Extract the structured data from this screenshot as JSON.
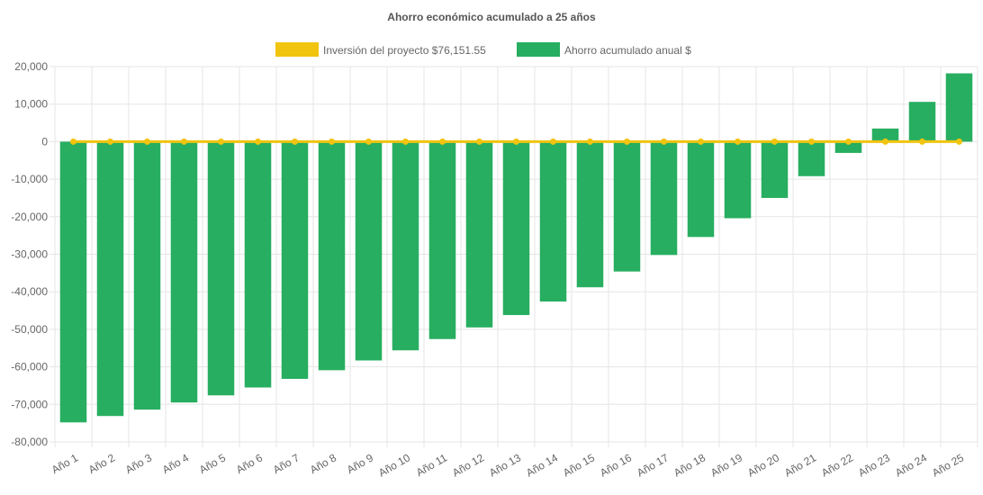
{
  "chart_data": {
    "type": "bar",
    "title": "Ahorro económico acumulado a 25 años",
    "categories": [
      "Año 1",
      "Año 2",
      "Año 3",
      "Año 4",
      "Año 5",
      "Año 6",
      "Año 7",
      "Año 8",
      "Año 9",
      "Año 10",
      "Año 11",
      "Año 12",
      "Año 13",
      "Año 14",
      "Año 15",
      "Año 16",
      "Año 17",
      "Año 18",
      "Año 19",
      "Año 20",
      "Año 21",
      "Año 22",
      "Año 23",
      "Año 24",
      "Año 25"
    ],
    "series": [
      {
        "name": "Inversión del proyecto $76,151.55",
        "type": "line",
        "color": "#f1c40f",
        "values": [
          0,
          0,
          0,
          0,
          0,
          0,
          0,
          0,
          0,
          0,
          0,
          0,
          0,
          0,
          0,
          0,
          0,
          0,
          0,
          0,
          0,
          0,
          0,
          0,
          0
        ]
      },
      {
        "name": "Ahorro acumulado anual $",
        "type": "bar",
        "color": "#27ae60",
        "values": [
          -74800,
          -73100,
          -71400,
          -69500,
          -67600,
          -65500,
          -63200,
          -60900,
          -58300,
          -55600,
          -52600,
          -49500,
          -46200,
          -42600,
          -38800,
          -34600,
          -30200,
          -25400,
          -20400,
          -15000,
          -9200,
          -3000,
          3500,
          10600,
          18200
        ]
      }
    ],
    "ylim": [
      -80000,
      20000
    ],
    "yticks": [
      20000,
      10000,
      0,
      -10000,
      -20000,
      -30000,
      -40000,
      -50000,
      -60000,
      -70000,
      -80000
    ],
    "ytick_labels": [
      "20,000",
      "10,000",
      "0",
      "-10,000",
      "-20,000",
      "-30,000",
      "-40,000",
      "-50,000",
      "-60,000",
      "-70,000",
      "-80,000"
    ],
    "xlabel": "",
    "ylabel": "",
    "grid": true,
    "legend_position": "top-center"
  }
}
